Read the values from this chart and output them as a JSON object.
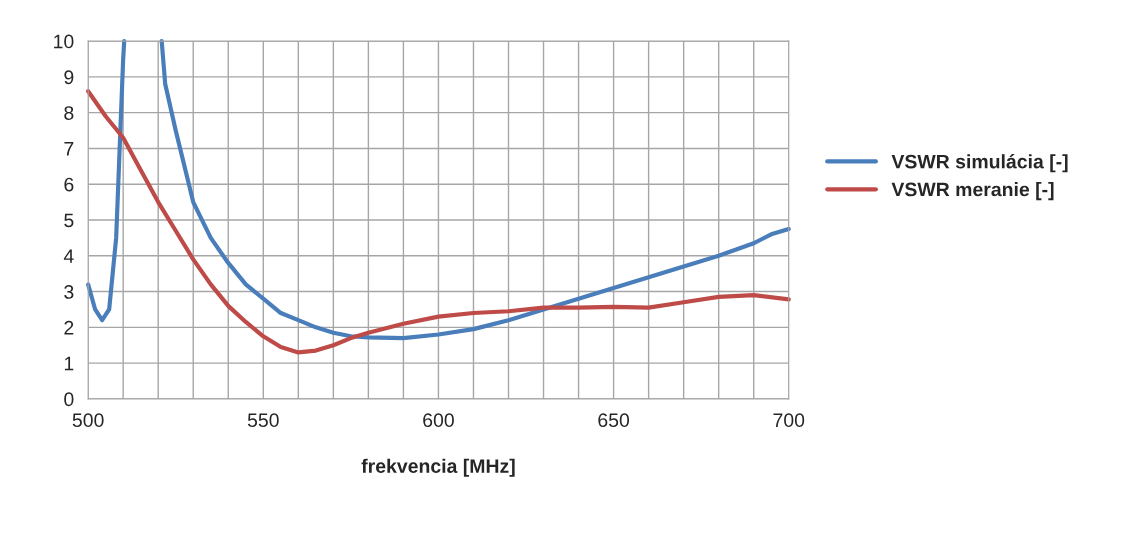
{
  "chart_data": {
    "type": "line",
    "xlabel": "frekvencia [MHz]",
    "xlim": [
      500,
      700
    ],
    "xticks": [
      500,
      550,
      600,
      650,
      700
    ],
    "ylim": [
      0,
      10
    ],
    "yticks": [
      0,
      1,
      2,
      3,
      4,
      5,
      6,
      7,
      8,
      9,
      10
    ],
    "grid": true,
    "legend": "right",
    "marker": "none",
    "line_style": "solid",
    "series": [
      {
        "name": "VSWR simulácia [-]",
        "color": "#4a7ebb",
        "x": [
          500,
          502,
          504,
          506,
          508,
          509,
          510,
          510.3,
          515,
          521,
          522,
          525,
          530,
          535,
          540,
          545,
          550,
          555,
          560,
          565,
          570,
          575,
          580,
          590,
          600,
          610,
          620,
          630,
          640,
          650,
          660,
          670,
          680,
          690,
          695,
          700
        ],
        "values": [
          3.2,
          2.5,
          2.2,
          2.5,
          4.5,
          7,
          9.5,
          10,
          null,
          10,
          8.8,
          7.5,
          5.5,
          4.5,
          3.8,
          3.2,
          2.8,
          2.4,
          2.2,
          2.0,
          1.85,
          1.75,
          1.72,
          1.7,
          1.8,
          1.95,
          2.2,
          2.5,
          2.8,
          3.1,
          3.4,
          3.7,
          4.0,
          4.35,
          4.6,
          4.75
        ]
      },
      {
        "name": "VSWR meranie [-]",
        "color": "#be4b48",
        "x": [
          500,
          505,
          510,
          515,
          520,
          525,
          530,
          535,
          540,
          545,
          550,
          555,
          560,
          565,
          570,
          575,
          580,
          590,
          600,
          610,
          620,
          630,
          640,
          650,
          660,
          670,
          680,
          690,
          700
        ],
        "values": [
          8.6,
          7.9,
          7.3,
          6.4,
          5.5,
          4.7,
          3.9,
          3.2,
          2.6,
          2.15,
          1.75,
          1.45,
          1.3,
          1.35,
          1.5,
          1.7,
          1.85,
          2.1,
          2.3,
          2.4,
          2.45,
          2.55,
          2.55,
          2.57,
          2.55,
          2.7,
          2.85,
          2.9,
          2.78
        ]
      }
    ]
  }
}
